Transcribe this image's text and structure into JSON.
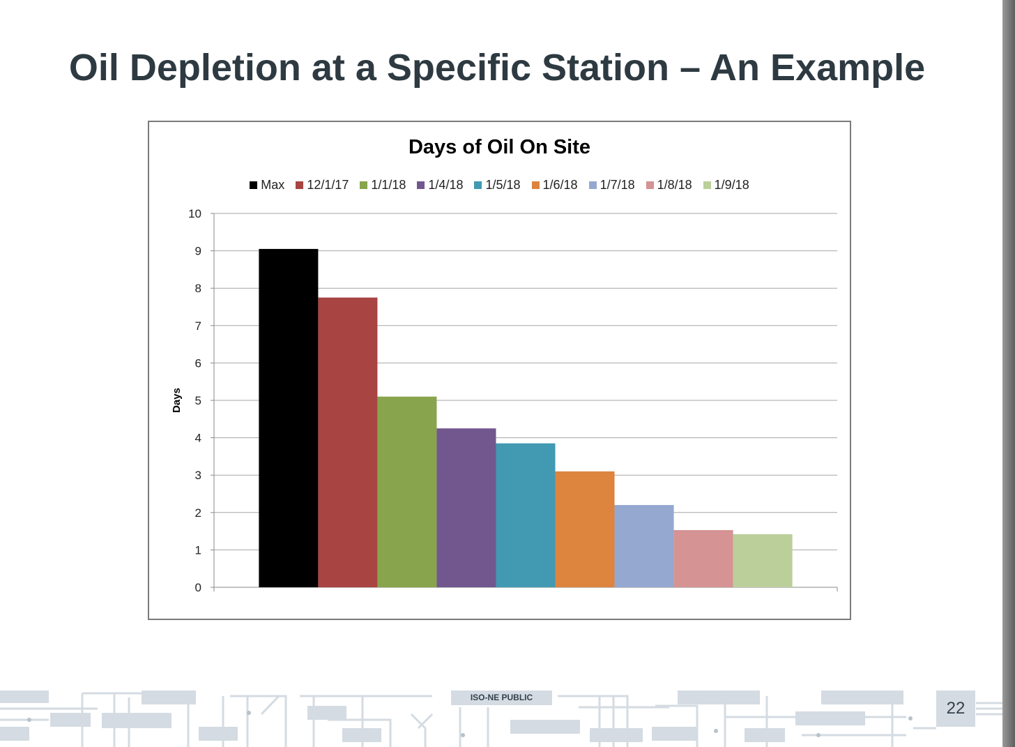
{
  "slide": {
    "title": "Oil Depletion at a Specific Station – An Example",
    "footer_label": "ISO-NE PUBLIC",
    "page_number": "22"
  },
  "chart_data": {
    "type": "bar",
    "title": "Days of Oil On Site",
    "xlabel": "",
    "ylabel": "Days",
    "ylim": [
      0,
      10
    ],
    "yticks": [
      0,
      1,
      2,
      3,
      4,
      5,
      6,
      7,
      8,
      9,
      10
    ],
    "grid": true,
    "legend_position": "top",
    "series": [
      {
        "name": "Max",
        "value": 9.05,
        "color": "#000000"
      },
      {
        "name": "12/1/17",
        "value": 7.75,
        "color": "#a84442"
      },
      {
        "name": "1/1/18",
        "value": 5.1,
        "color": "#88a44c"
      },
      {
        "name": "1/4/18",
        "value": 4.25,
        "color": "#72578f"
      },
      {
        "name": "1/5/18",
        "value": 3.85,
        "color": "#4299b2"
      },
      {
        "name": "1/6/18",
        "value": 3.1,
        "color": "#dd843e"
      },
      {
        "name": "1/7/18",
        "value": 2.2,
        "color": "#95a8d0"
      },
      {
        "name": "1/8/18",
        "value": 1.53,
        "color": "#d59393"
      },
      {
        "name": "1/9/18",
        "value": 1.42,
        "color": "#bbcf9b"
      }
    ]
  }
}
